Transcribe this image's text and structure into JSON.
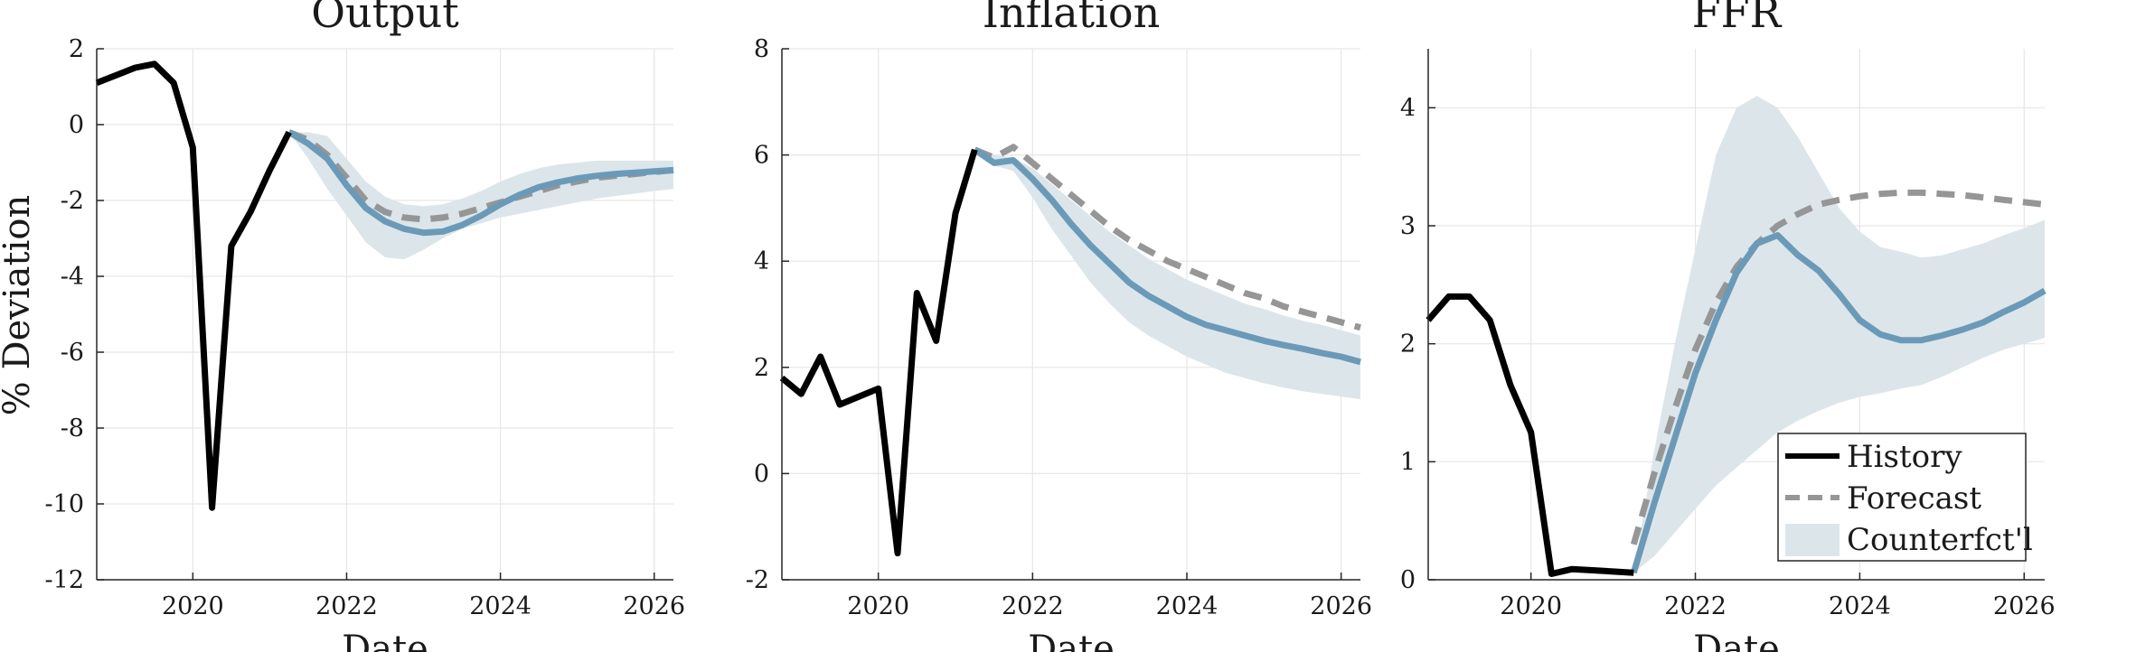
{
  "figure": {
    "ylabel": "% Deviation",
    "legend": {
      "placement": "bottom-right of third panel",
      "entries": [
        {
          "name": "History",
          "style": "solid black line"
        },
        {
          "name": "Forecast",
          "style": "dashed gray line"
        },
        {
          "name": "Counterfct'l",
          "style": "light blue shaded band"
        }
      ]
    },
    "colors": {
      "history": "#000000",
      "forecast": "#969696",
      "counterfactual_line": "#6b9ab8",
      "counterfactual_band": "#dce6ea",
      "grid": "#e6e6e6",
      "axis": "#262626"
    }
  },
  "chart_data": [
    {
      "type": "line",
      "title": "Output",
      "xlabel": "Date",
      "ylabel": "% Deviation",
      "xlim": [
        2018.75,
        2026.25
      ],
      "ylim": [
        -12,
        2
      ],
      "xticks": [
        2020,
        2022,
        2024,
        2026
      ],
      "yticks": [
        -12,
        -10,
        -8,
        -6,
        -4,
        -2,
        0,
        2
      ],
      "grid": true,
      "series": [
        {
          "name": "History",
          "x": [
            2018.75,
            2019.0,
            2019.25,
            2019.5,
            2019.75,
            2020.0,
            2020.25,
            2020.5,
            2020.75,
            2021.0,
            2021.25
          ],
          "y": [
            1.1,
            1.3,
            1.5,
            1.6,
            1.1,
            -0.6,
            -10.1,
            -3.2,
            -2.3,
            -1.2,
            -0.2
          ]
        },
        {
          "name": "Forecast",
          "x": [
            2021.25,
            2021.5,
            2021.75,
            2022.0,
            2022.25,
            2022.5,
            2022.75,
            2023.0,
            2023.25,
            2023.5,
            2023.75,
            2024.0,
            2024.25,
            2024.5,
            2024.75,
            2025.0,
            2025.25,
            2025.5,
            2025.75,
            2026.0,
            2026.25
          ],
          "y": [
            -0.2,
            -0.4,
            -0.8,
            -1.4,
            -2.0,
            -2.3,
            -2.45,
            -2.5,
            -2.45,
            -2.35,
            -2.2,
            -2.05,
            -1.9,
            -1.75,
            -1.6,
            -1.5,
            -1.4,
            -1.35,
            -1.3,
            -1.25,
            -1.2
          ]
        },
        {
          "name": "Counterfct'l",
          "x": [
            2021.25,
            2021.5,
            2021.75,
            2022.0,
            2022.25,
            2022.5,
            2022.75,
            2023.0,
            2023.25,
            2023.5,
            2023.75,
            2024.0,
            2024.25,
            2024.5,
            2024.75,
            2025.0,
            2025.25,
            2025.5,
            2025.75,
            2026.0,
            2026.25
          ],
          "y": [
            -0.2,
            -0.5,
            -0.9,
            -1.6,
            -2.2,
            -2.55,
            -2.75,
            -2.85,
            -2.82,
            -2.65,
            -2.4,
            -2.1,
            -1.85,
            -1.65,
            -1.52,
            -1.42,
            -1.35,
            -1.3,
            -1.27,
            -1.23,
            -1.2
          ]
        }
      ],
      "band": {
        "name": "Counterfct'l",
        "x": [
          2021.25,
          2021.5,
          2021.75,
          2022.0,
          2022.25,
          2022.5,
          2022.75,
          2023.0,
          2023.25,
          2023.5,
          2023.75,
          2024.0,
          2024.25,
          2024.5,
          2024.75,
          2025.0,
          2025.25,
          2025.5,
          2025.75,
          2026.0,
          2026.25
        ],
        "lower": [
          -0.2,
          -0.9,
          -1.7,
          -2.4,
          -3.1,
          -3.5,
          -3.55,
          -3.3,
          -3.0,
          -2.75,
          -2.6,
          -2.45,
          -2.35,
          -2.25,
          -2.15,
          -2.05,
          -1.95,
          -1.88,
          -1.82,
          -1.75,
          -1.7
        ],
        "upper": [
          -0.2,
          -0.2,
          -0.3,
          -0.9,
          -1.5,
          -1.9,
          -2.1,
          -2.15,
          -2.1,
          -1.95,
          -1.75,
          -1.5,
          -1.3,
          -1.15,
          -1.05,
          -1.0,
          -0.95,
          -0.95,
          -0.95,
          -0.95,
          -0.95
        ]
      }
    },
    {
      "type": "line",
      "title": "Inflation",
      "xlabel": "Date",
      "xlim": [
        2018.75,
        2026.25
      ],
      "ylim": [
        -2,
        8
      ],
      "xticks": [
        2020,
        2022,
        2024,
        2026
      ],
      "yticks": [
        -2,
        0,
        2,
        4,
        6,
        8
      ],
      "grid": true,
      "series": [
        {
          "name": "History",
          "x": [
            2018.75,
            2019.0,
            2019.25,
            2019.5,
            2019.75,
            2020.0,
            2020.25,
            2020.5,
            2020.75,
            2021.0,
            2021.25
          ],
          "y": [
            1.8,
            1.5,
            2.2,
            1.3,
            1.45,
            1.6,
            -1.5,
            3.4,
            2.5,
            4.9,
            6.1
          ]
        },
        {
          "name": "Forecast",
          "x": [
            2021.25,
            2021.5,
            2021.75,
            2022.0,
            2022.25,
            2022.5,
            2022.75,
            2023.0,
            2023.25,
            2023.5,
            2023.75,
            2024.0,
            2024.25,
            2024.5,
            2024.75,
            2025.0,
            2025.25,
            2025.5,
            2025.75,
            2026.0,
            2026.25
          ],
          "y": [
            6.1,
            5.95,
            6.15,
            5.85,
            5.55,
            5.25,
            4.95,
            4.65,
            4.4,
            4.2,
            4.0,
            3.85,
            3.7,
            3.55,
            3.4,
            3.3,
            3.15,
            3.05,
            2.95,
            2.85,
            2.75
          ]
        },
        {
          "name": "Counterfct'l",
          "x": [
            2021.25,
            2021.5,
            2021.75,
            2022.0,
            2022.25,
            2022.5,
            2022.75,
            2023.0,
            2023.25,
            2023.5,
            2023.75,
            2024.0,
            2024.25,
            2024.5,
            2024.75,
            2025.0,
            2025.25,
            2025.5,
            2025.75,
            2026.0,
            2026.25
          ],
          "y": [
            6.1,
            5.85,
            5.9,
            5.55,
            5.15,
            4.7,
            4.3,
            3.95,
            3.6,
            3.35,
            3.15,
            2.95,
            2.8,
            2.7,
            2.6,
            2.5,
            2.42,
            2.35,
            2.27,
            2.2,
            2.1
          ]
        }
      ],
      "band": {
        "name": "Counterfct'l",
        "x": [
          2021.25,
          2021.5,
          2021.75,
          2022.0,
          2022.25,
          2022.5,
          2022.75,
          2023.0,
          2023.25,
          2023.5,
          2023.75,
          2024.0,
          2024.25,
          2024.5,
          2024.75,
          2025.0,
          2025.25,
          2025.5,
          2025.75,
          2026.0,
          2026.25
        ],
        "lower": [
          6.1,
          5.8,
          5.7,
          5.2,
          4.6,
          4.1,
          3.6,
          3.2,
          2.85,
          2.6,
          2.4,
          2.2,
          2.05,
          1.9,
          1.8,
          1.7,
          1.62,
          1.55,
          1.5,
          1.45,
          1.4
        ]
      },
      "band_upper_note": "",
      "band_upper": [
        6.1,
        6.0,
        5.95,
        5.75,
        5.45,
        5.15,
        4.85,
        4.55,
        4.3,
        4.05,
        3.85,
        3.65,
        3.5,
        3.35,
        3.2,
        3.1,
        2.98,
        2.88,
        2.8,
        2.7,
        2.6
      ]
    },
    {
      "type": "line",
      "title": "FFR",
      "xlabel": "Date",
      "xlim": [
        2018.75,
        2026.25
      ],
      "ylim": [
        0,
        4.5
      ],
      "xticks": [
        2020,
        2022,
        2024,
        2026
      ],
      "yticks": [
        0,
        1,
        2,
        3,
        4
      ],
      "grid": true,
      "series": [
        {
          "name": "History",
          "x": [
            2018.75,
            2019.0,
            2019.25,
            2019.5,
            2019.75,
            2020.0,
            2020.25,
            2020.5,
            2020.75,
            2021.0,
            2021.25
          ],
          "y": [
            2.2,
            2.4,
            2.4,
            2.2,
            1.65,
            1.25,
            0.05,
            0.09,
            0.08,
            0.07,
            0.06
          ]
        },
        {
          "name": "Forecast",
          "x": [
            2021.25,
            2021.5,
            2021.75,
            2022.0,
            2022.25,
            2022.5,
            2022.75,
            2023.0,
            2023.25,
            2023.5,
            2023.75,
            2024.0,
            2024.25,
            2024.5,
            2024.75,
            2025.0,
            2025.25,
            2025.5,
            2025.75,
            2026.0,
            2026.25
          ],
          "y": [
            0.3,
            0.9,
            1.45,
            1.95,
            2.35,
            2.65,
            2.85,
            3.0,
            3.1,
            3.18,
            3.22,
            3.25,
            3.27,
            3.28,
            3.28,
            3.27,
            3.26,
            3.24,
            3.22,
            3.2,
            3.18
          ]
        },
        {
          "name": "Counterfct'l",
          "x": [
            2021.25,
            2021.5,
            2021.75,
            2022.0,
            2022.25,
            2022.5,
            2022.75,
            2023.0,
            2023.25,
            2023.5,
            2023.75,
            2024.0,
            2024.25,
            2024.5,
            2024.75,
            2025.0,
            2025.25,
            2025.5,
            2025.75,
            2026.0,
            2026.25
          ],
          "y": [
            0.06,
            0.65,
            1.2,
            1.75,
            2.2,
            2.6,
            2.85,
            2.92,
            2.75,
            2.62,
            2.42,
            2.2,
            2.08,
            2.03,
            2.03,
            2.07,
            2.12,
            2.18,
            2.27,
            2.35,
            2.45
          ]
        }
      ],
      "band": {
        "name": "Counterfct'l",
        "x": [
          2021.25,
          2021.5,
          2021.75,
          2022.0,
          2022.25,
          2022.5,
          2022.75,
          2023.0,
          2023.25,
          2023.5,
          2023.75,
          2024.0,
          2024.25,
          2024.5,
          2024.75,
          2025.0,
          2025.25,
          2025.5,
          2025.75,
          2026.0,
          2026.25
        ],
        "lower": [
          0.06,
          0.2,
          0.4,
          0.6,
          0.8,
          0.95,
          1.1,
          1.25,
          1.35,
          1.43,
          1.5,
          1.55,
          1.58,
          1.62,
          1.65,
          1.72,
          1.8,
          1.88,
          1.95,
          2.0,
          2.05
        ]
      },
      "band_upper": [
        0.06,
        1.1,
        2.0,
        2.8,
        3.6,
        4.0,
        4.1,
        4.0,
        3.75,
        3.45,
        3.15,
        2.95,
        2.82,
        2.78,
        2.73,
        2.75,
        2.8,
        2.85,
        2.92,
        2.98,
        3.05
      ]
    }
  ]
}
